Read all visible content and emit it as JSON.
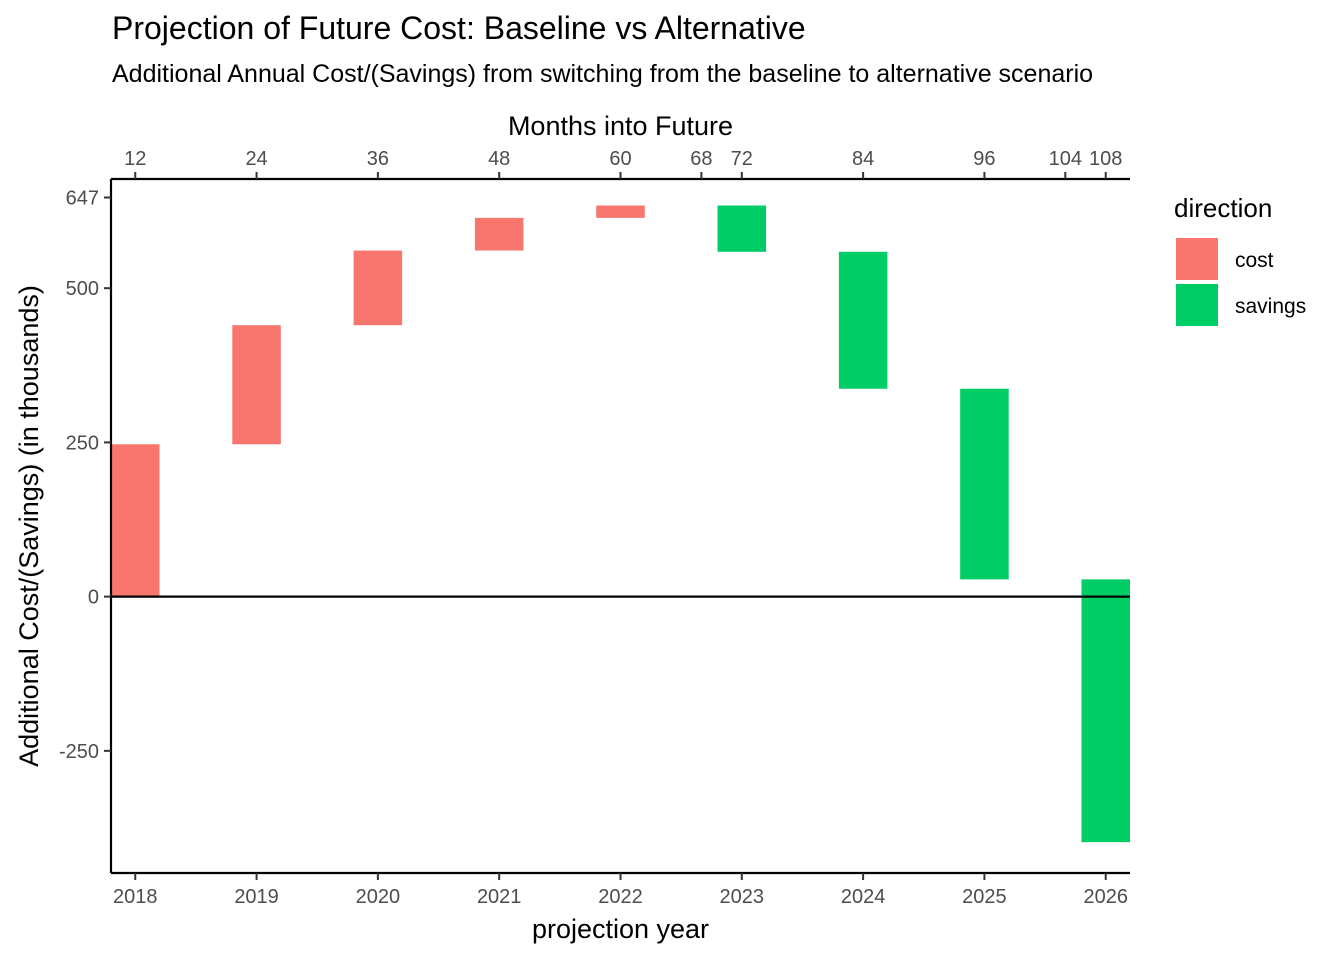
{
  "chart_data": {
    "type": "waterfall",
    "title": "Projection of Future Cost: Baseline vs Alternative",
    "subtitle": "Additional Annual Cost/(Savings) from switching from the baseline to alternative scenario",
    "xlabel": "projection year",
    "ylabel": "Additional Cost/(Savings) (in thousands)",
    "secondary_xlabel": "Months into Future",
    "categories": [
      "2018",
      "2019",
      "2020",
      "2021",
      "2022",
      "2023",
      "2024",
      "2025",
      "2026"
    ],
    "bars": [
      {
        "year": "2018",
        "start": 0,
        "end": 247,
        "direction": "cost"
      },
      {
        "year": "2019",
        "start": 247,
        "end": 440,
        "direction": "cost"
      },
      {
        "year": "2020",
        "start": 440,
        "end": 561,
        "direction": "cost"
      },
      {
        "year": "2021",
        "start": 561,
        "end": 614,
        "direction": "cost"
      },
      {
        "year": "2022",
        "start": 614,
        "end": 634,
        "direction": "cost"
      },
      {
        "year": "2023",
        "start": 634,
        "end": 559,
        "direction": "savings"
      },
      {
        "year": "2024",
        "start": 559,
        "end": 337,
        "direction": "savings"
      },
      {
        "year": "2025",
        "start": 337,
        "end": 28,
        "direction": "savings"
      },
      {
        "year": "2026",
        "start": 28,
        "end": -398,
        "direction": "savings"
      }
    ],
    "ylim": [
      -448,
      677
    ],
    "y_ticks": [
      -250,
      0,
      250,
      500,
      647
    ],
    "secondary_x_ticks": [
      12,
      24,
      36,
      48,
      60,
      68,
      72,
      84,
      96,
      104,
      108
    ],
    "legend": {
      "title": "direction",
      "position": "right",
      "entries": [
        {
          "label": "cost",
          "color": "#F8766D"
        },
        {
          "label": "savings",
          "color": "#00CD65"
        }
      ]
    },
    "grid": false,
    "zero_line": true
  }
}
